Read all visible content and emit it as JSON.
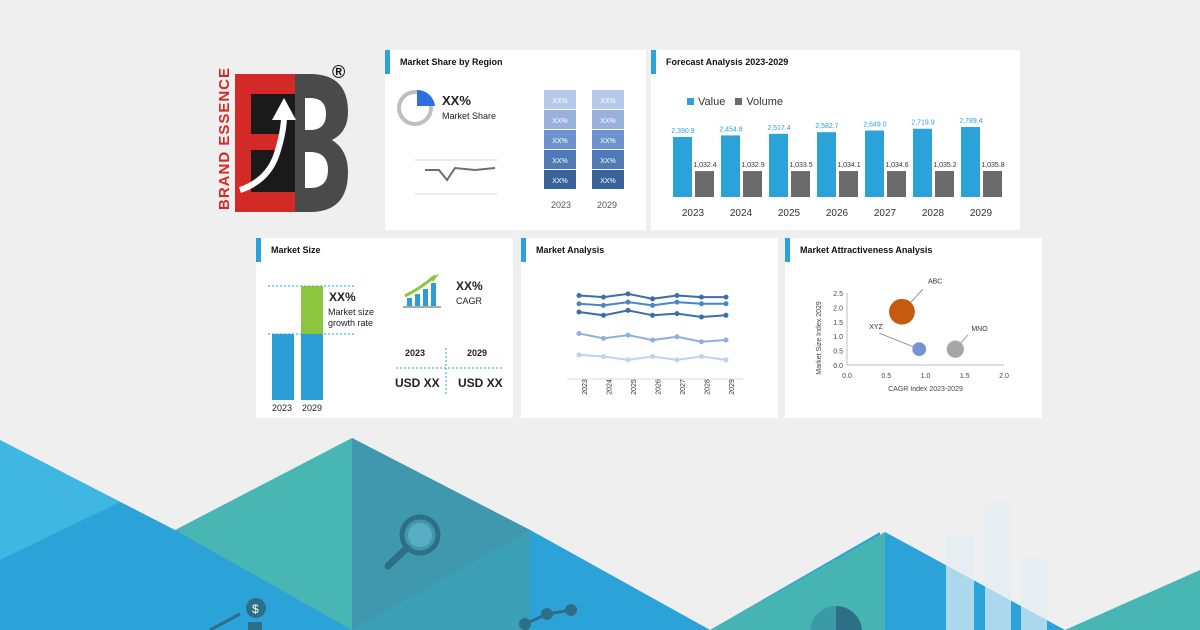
{
  "brand": {
    "name": "BRAND ESSENCE",
    "registered": "®"
  },
  "region_panel": {
    "title": "Market Share by Region",
    "share_value": "XX%",
    "share_label": "Market Share",
    "segment_label": "XX%",
    "years": [
      "2023",
      "2029"
    ]
  },
  "forecast_panel": {
    "title": "Forecast Analysis 2023-2029",
    "legend": [
      "Value",
      "Volume"
    ],
    "colors": {
      "value": "#2ba3d9",
      "volume": "#6b6b6b"
    }
  },
  "size_panel": {
    "title": "Market Size",
    "growth_value": "XX%",
    "growth_label_1": "Market size",
    "growth_label_2": "growth rate",
    "cagr_value": "XX%",
    "cagr_label": "CAGR",
    "year_a": "2023",
    "year_b": "2029",
    "usd_a": "USD XX",
    "usd_b": "USD XX",
    "bar_years": [
      "2023",
      "2029"
    ]
  },
  "analysis_panel": {
    "title": "Market Analysis"
  },
  "attract_panel": {
    "title": "Market Attractiveness Analysis"
  },
  "chart_data": [
    {
      "type": "bar",
      "title": "Forecast Analysis 2023-2029",
      "categories": [
        "2023",
        "2024",
        "2025",
        "2026",
        "2027",
        "2028",
        "2029"
      ],
      "series": [
        {
          "name": "Value",
          "values": [
            2390.9,
            2454.8,
            2517.4,
            2582.7,
            2649.0,
            2719.9,
            2789.4
          ],
          "labels": [
            "2,390.9",
            "2,454.8",
            "2,517.4",
            "2,582.7",
            "2,649.0",
            "2,719.9",
            "2,789.4"
          ]
        },
        {
          "name": "Volume",
          "values": [
            1032.4,
            1032.9,
            1033.5,
            1034.1,
            1034.6,
            1035.2,
            1035.8
          ],
          "labels": [
            "1,032.4",
            "1,032.9",
            "1,033.5",
            "1,034.1",
            "1,034.6",
            "1,035.2",
            "1,035.8"
          ]
        }
      ],
      "legend": "top-left"
    },
    {
      "type": "line",
      "title": "Market Analysis",
      "categories": [
        "2023",
        "2024",
        "2025",
        "2026",
        "2027",
        "2028",
        "2029"
      ],
      "series": [
        {
          "values": [
            5.0,
            4.9,
            5.1,
            4.8,
            5.0,
            4.9,
            4.9
          ],
          "color": "#3a6fa8"
        },
        {
          "values": [
            4.5,
            4.4,
            4.6,
            4.4,
            4.6,
            4.5,
            4.5
          ],
          "color": "#4a86c4"
        },
        {
          "values": [
            4.0,
            3.8,
            4.1,
            3.8,
            3.9,
            3.7,
            3.8
          ],
          "color": "#3a6fa8"
        },
        {
          "values": [
            2.7,
            2.4,
            2.6,
            2.3,
            2.5,
            2.2,
            2.3
          ],
          "color": "#8fb0dc"
        },
        {
          "values": [
            1.4,
            1.3,
            1.1,
            1.3,
            1.1,
            1.3,
            1.1
          ],
          "color": "#bfd3ee"
        }
      ]
    },
    {
      "type": "scatter",
      "title": "Market Attractiveness Analysis",
      "xlabel": "CAGR Index 2023-2029",
      "ylabel": "Market Size Index 2029",
      "xlim": [
        0,
        2
      ],
      "ylim": [
        0,
        2.5
      ],
      "xticks": [
        "0.0",
        "0.5",
        "1.0",
        "1.5",
        "2.0"
      ],
      "yticks": [
        "0.0",
        "0.5",
        "1.0",
        "1.5",
        "2.0",
        "2.5"
      ],
      "points": [
        {
          "label": "ABC",
          "x": 0.7,
          "y": 1.85,
          "size": 3,
          "color": "#c55a11"
        },
        {
          "label": "XYZ",
          "x": 0.92,
          "y": 0.55,
          "size": 1.6,
          "color": "#7393d4"
        },
        {
          "label": "MNO",
          "x": 1.38,
          "y": 0.55,
          "size": 2,
          "color": "#a6a6a6"
        }
      ]
    }
  ]
}
